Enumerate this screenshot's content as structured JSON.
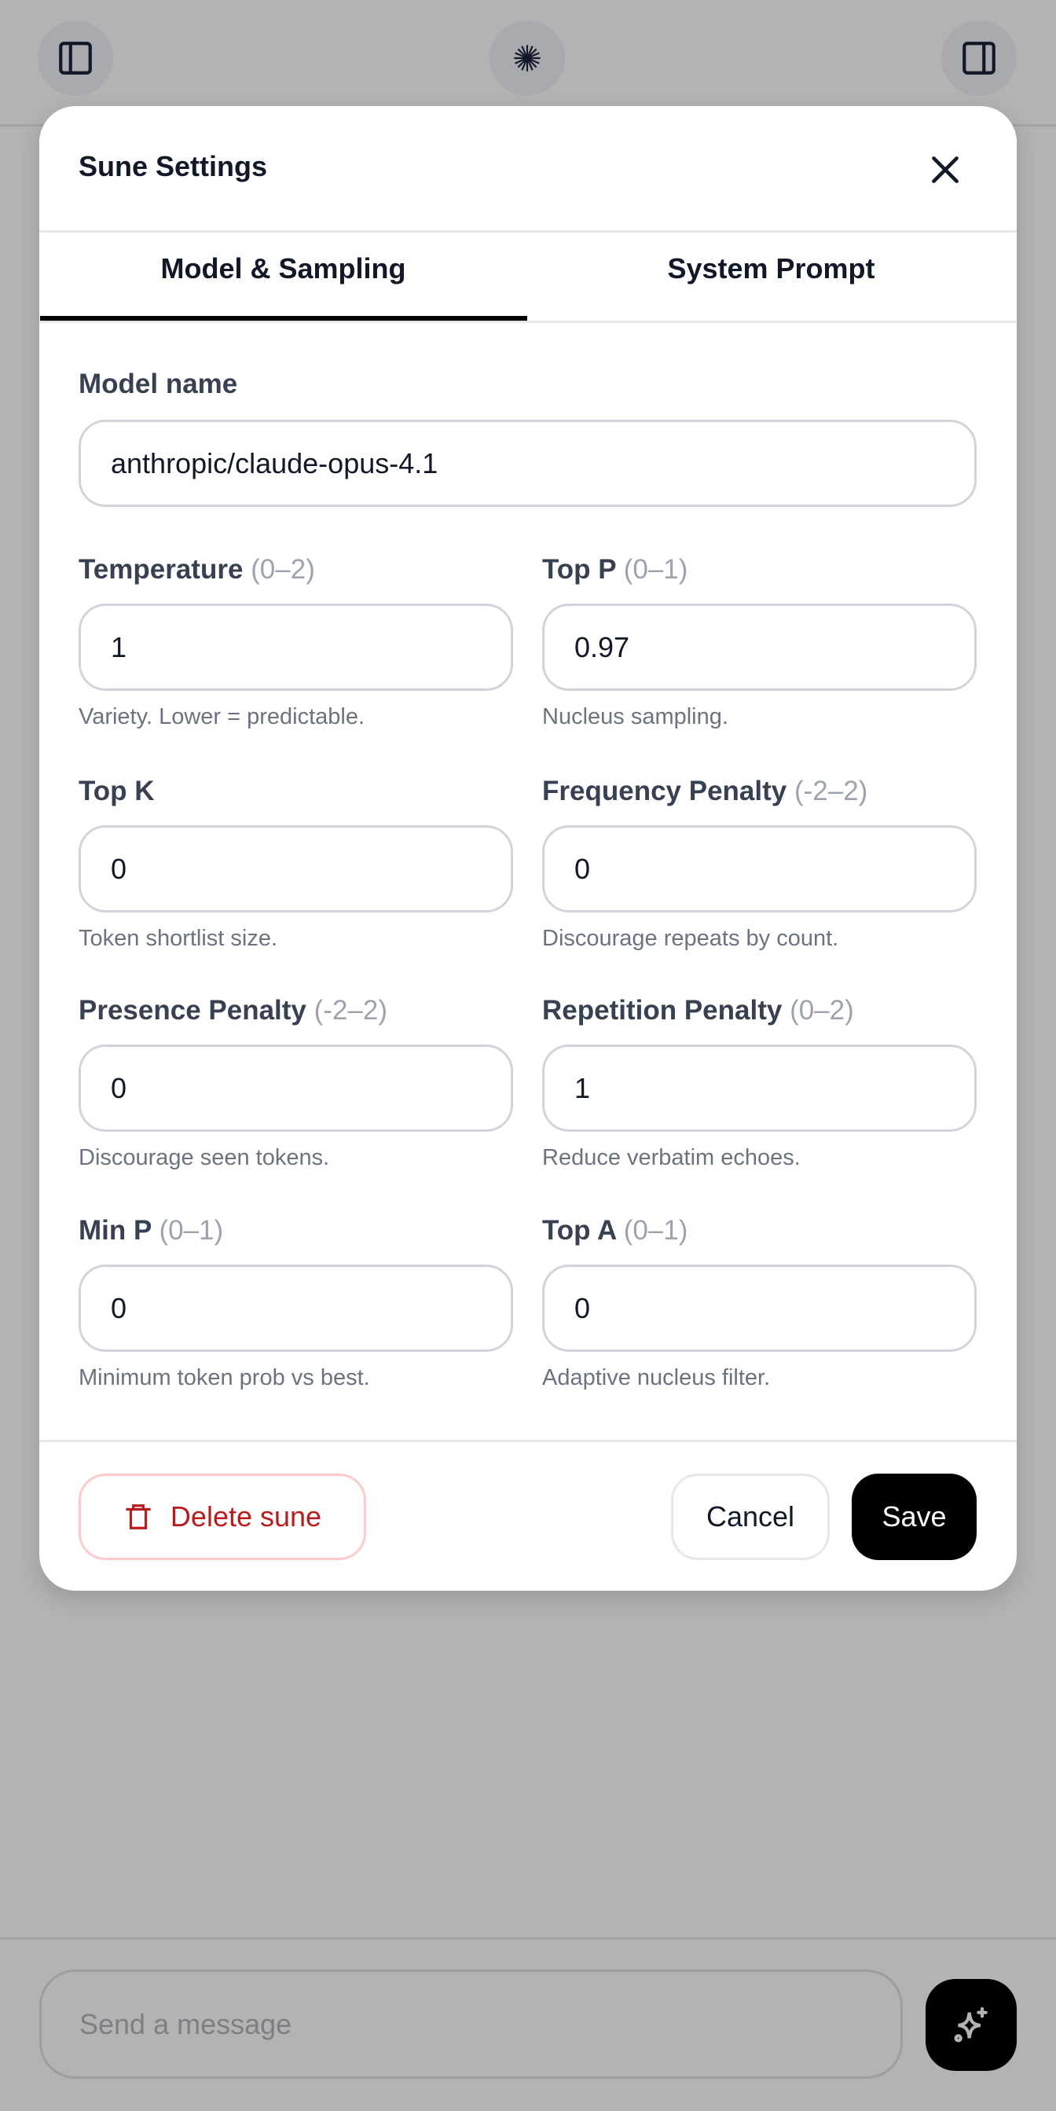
{
  "header": {
    "left_icon": "sidebar-left-icon",
    "center_icon": "starburst-logo-icon",
    "right_icon": "sidebar-right-icon"
  },
  "modal": {
    "title": "Sune Settings",
    "close_icon": "close-icon",
    "tabs": [
      {
        "label": "Model & Sampling",
        "active": true
      },
      {
        "label": "System Prompt",
        "active": false
      }
    ],
    "model_name": {
      "label": "Model name",
      "value": "anthropic/claude-opus-4.1"
    },
    "fields": [
      {
        "label": "Temperature",
        "range": "(0–2)",
        "value": "1",
        "help": "Variety. Lower = predictable."
      },
      {
        "label": "Top P",
        "range": "(0–1)",
        "value": "0.97",
        "help": "Nucleus sampling."
      },
      {
        "label": "Top K",
        "range": "",
        "value": "0",
        "help": "Token shortlist size."
      },
      {
        "label": "Frequency Penalty",
        "range": "(-2–2)",
        "value": "0",
        "help": "Discourage repeats by count."
      },
      {
        "label": "Presence Penalty",
        "range": "(-2–2)",
        "value": "0",
        "help": "Discourage seen tokens."
      },
      {
        "label": "Repetition Penalty",
        "range": "(0–2)",
        "value": "1",
        "help": "Reduce verbatim echoes."
      },
      {
        "label": "Min P",
        "range": "(0–1)",
        "value": "0",
        "help": "Minimum token prob vs best."
      },
      {
        "label": "Top A",
        "range": "(0–1)",
        "value": "0",
        "help": "Adaptive nucleus filter."
      }
    ],
    "footer": {
      "delete_label": "Delete sune",
      "delete_icon": "trash-icon",
      "cancel_label": "Cancel",
      "save_label": "Save"
    }
  },
  "composer": {
    "placeholder": "Send a message",
    "send_icon": "sparkles-icon"
  },
  "colors": {
    "overlay": "#b3b3b3",
    "danger": "#b91c1c",
    "danger_border": "#fecaca",
    "primary": "#000000"
  }
}
